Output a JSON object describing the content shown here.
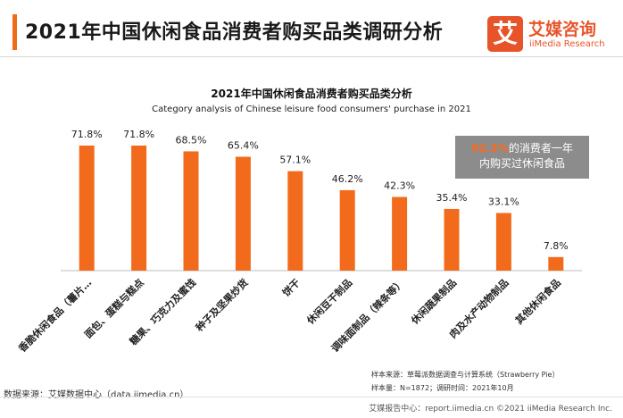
{
  "page": {
    "title": "2021年中国休闲食品消费者购买品类调研分析"
  },
  "logo": {
    "mark": "艾",
    "name_cn": "艾媒咨询",
    "name_en": "iiMedia Research"
  },
  "callout": {
    "highlight": "92.3%",
    "line1_rest": "的消费者一年",
    "line2": "内购买过休闲食品"
  },
  "notes": {
    "sample_source": "样本来源：草莓派数据调查与计算系统（Strawberry Pie）",
    "sample_size": "样本量：N=1872；调研时间：2021年10月"
  },
  "source": "数据来源：艾媒数据中心（data.iimedia.cn）",
  "footer": "艾媒报告中心：report.iimedia.cn  ©2021  iiMedia Research Inc.",
  "colors": {
    "accent": "#f26b1d",
    "bar": "#f26b1d",
    "callout_bg": "#8c8c8c"
  },
  "chart_data": {
    "type": "bar",
    "title": "2021年中国休闲食品消费者购买品类分析",
    "subtitle": "Category analysis of Chinese leisure food consumers' purchase in 2021",
    "categories": [
      "香脆休闲食品（薯片…",
      "面包、蛋糕与糕点",
      "糖果、巧克力及蜜饯",
      "种子及坚果炒货",
      "饼干",
      "休闲豆干制品",
      "调味面制品（辣条等）",
      "休闲蔬果制品",
      "肉及水产动物制品",
      "其他休闲食品"
    ],
    "values": [
      71.8,
      71.8,
      68.5,
      65.4,
      57.1,
      46.2,
      42.3,
      35.4,
      33.1,
      7.8
    ],
    "value_labels": [
      "71.8%",
      "71.8%",
      "68.5%",
      "65.4%",
      "57.1%",
      "46.2%",
      "42.3%",
      "35.4%",
      "33.1%",
      "7.8%"
    ],
    "ylim": [
      0,
      100
    ],
    "unit": "%",
    "grid": false,
    "legend": "none"
  }
}
